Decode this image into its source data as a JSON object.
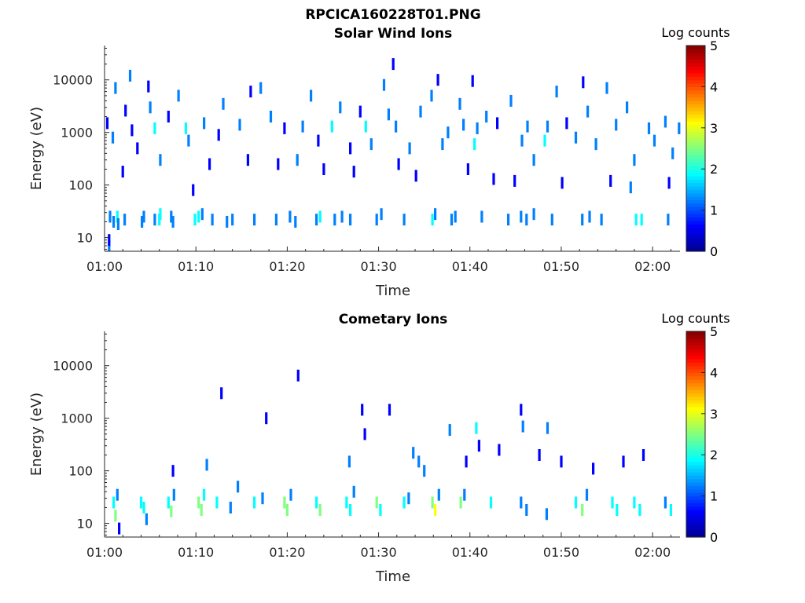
{
  "figure_title": "RPCICA160228T01.PNG",
  "colormap": [
    "#00008f",
    "#0000ff",
    "#0080ff",
    "#00ffff",
    "#80ff80",
    "#ffff00",
    "#ff8000",
    "#ff0000",
    "#800000"
  ],
  "chart_data": [
    {
      "type": "heatmap",
      "title": "Solar Wind Ions",
      "xlabel": "Time",
      "ylabel": "Energy (eV)",
      "x_ticks": [
        "01:00",
        "01:10",
        "01:20",
        "01:30",
        "01:40",
        "01:50",
        "02:00"
      ],
      "x_range_minutes": [
        0,
        63
      ],
      "y_ticks": [
        "10",
        "100",
        "1000",
        "10000"
      ],
      "y_scale": "log",
      "ylim": [
        5.5,
        45000
      ],
      "colorbar": {
        "label": "Log counts",
        "range": [
          0,
          5
        ],
        "ticks": [
          "0",
          "1",
          "2",
          "3",
          "4",
          "5"
        ]
      },
      "points": [
        [
          0.5,
          7,
          1.0
        ],
        [
          0.5,
          9,
          0.9
        ],
        [
          0.6,
          25,
          1.1
        ],
        [
          1.0,
          20,
          1.2
        ],
        [
          1.4,
          25,
          1.6
        ],
        [
          1.5,
          18,
          1.1
        ],
        [
          2.2,
          22,
          1.0
        ],
        [
          4.1,
          20,
          1.0
        ],
        [
          4.3,
          25,
          1.0
        ],
        [
          5.5,
          22,
          1.1
        ],
        [
          6.0,
          22,
          1.9
        ],
        [
          6.1,
          28,
          1.6
        ],
        [
          7.3,
          25,
          1.0
        ],
        [
          7.5,
          20,
          1.1
        ],
        [
          9.9,
          22,
          1.8
        ],
        [
          10.3,
          25,
          1.6
        ],
        [
          10.7,
          28,
          1.2
        ],
        [
          11.8,
          22,
          1.0
        ],
        [
          13.4,
          20,
          1.0
        ],
        [
          14.0,
          22,
          1.1
        ],
        [
          16.4,
          22,
          1.0
        ],
        [
          18.8,
          22,
          1.0
        ],
        [
          20.3,
          25,
          1.1
        ],
        [
          20.9,
          20,
          1.0
        ],
        [
          23.2,
          22,
          1.1
        ],
        [
          23.6,
          25,
          1.7
        ],
        [
          25.2,
          22,
          1.0
        ],
        [
          26.0,
          25,
          1.1
        ],
        [
          26.9,
          22,
          1.0
        ],
        [
          29.8,
          22,
          1.2
        ],
        [
          30.3,
          28,
          1.0
        ],
        [
          32.8,
          22,
          1.1
        ],
        [
          35.9,
          22,
          1.6
        ],
        [
          36.2,
          28,
          1.3
        ],
        [
          38.0,
          22,
          1.2
        ],
        [
          38.4,
          25,
          1.0
        ],
        [
          41.3,
          25,
          1.0
        ],
        [
          44.2,
          22,
          1.0
        ],
        [
          45.6,
          25,
          1.1
        ],
        [
          46.2,
          22,
          1.0
        ],
        [
          47.0,
          28,
          1.0
        ],
        [
          49.0,
          22,
          1.1
        ],
        [
          52.3,
          22,
          1.3
        ],
        [
          53.1,
          25,
          1.0
        ],
        [
          54.4,
          22,
          1.1
        ],
        [
          58.2,
          22,
          1.7
        ],
        [
          58.8,
          22,
          1.8
        ],
        [
          61.7,
          22,
          1.1
        ],
        [
          0.3,
          1500,
          0.9
        ],
        [
          0.9,
          800,
          1.0
        ],
        [
          1.2,
          7000,
          1.0
        ],
        [
          2.3,
          2600,
          0.8
        ],
        [
          2.8,
          12000,
          1.0
        ],
        [
          3.0,
          1100,
          0.8
        ],
        [
          5.0,
          3000,
          1.0
        ],
        [
          5.5,
          1200,
          1.6
        ],
        [
          6.1,
          300,
          1.0
        ],
        [
          7.0,
          2000,
          0.9
        ],
        [
          8.1,
          5000,
          1.0
        ],
        [
          8.9,
          1200,
          1.6
        ],
        [
          9.2,
          700,
          1.0
        ],
        [
          10.9,
          1500,
          1.0
        ],
        [
          12.5,
          900,
          0.9
        ],
        [
          13.0,
          3500,
          1.0
        ],
        [
          14.8,
          1400,
          1.1
        ],
        [
          15.7,
          300,
          0.9
        ],
        [
          17.1,
          7000,
          1.0
        ],
        [
          18.2,
          2000,
          1.0
        ],
        [
          19.7,
          1200,
          0.9
        ],
        [
          21.1,
          300,
          1.0
        ],
        [
          21.7,
          1300,
          1.0
        ],
        [
          22.6,
          5000,
          1.0
        ],
        [
          23.4,
          700,
          0.9
        ],
        [
          24.9,
          1300,
          1.6
        ],
        [
          25.8,
          3000,
          1.0
        ],
        [
          26.9,
          500,
          0.9
        ],
        [
          28.0,
          2500,
          0.9
        ],
        [
          28.6,
          1300,
          1.6
        ],
        [
          29.2,
          600,
          1.0
        ],
        [
          30.6,
          8000,
          1.0
        ],
        [
          31.1,
          2200,
          1.0
        ],
        [
          31.9,
          1300,
          1.5
        ],
        [
          33.4,
          500,
          1.0
        ],
        [
          34.6,
          2500,
          1.0
        ],
        [
          35.8,
          5000,
          1.0
        ],
        [
          37.0,
          600,
          1.5
        ],
        [
          37.6,
          1000,
          1.0
        ],
        [
          38.9,
          3500,
          1.0
        ],
        [
          39.3,
          1400,
          1.0
        ],
        [
          40.5,
          600,
          1.7
        ],
        [
          40.8,
          1200,
          1.0
        ],
        [
          41.8,
          2000,
          1.0
        ],
        [
          43.0,
          1500,
          0.9
        ],
        [
          44.5,
          4000,
          1.0
        ],
        [
          45.7,
          700,
          1.4
        ],
        [
          46.3,
          1300,
          1.0
        ],
        [
          47.0,
          300,
          1.0
        ],
        [
          48.2,
          700,
          1.6
        ],
        [
          48.5,
          1300,
          1.0
        ],
        [
          49.5,
          6000,
          1.0
        ],
        [
          50.6,
          1500,
          0.9
        ],
        [
          51.6,
          800,
          1.0
        ],
        [
          52.9,
          2500,
          1.0
        ],
        [
          53.8,
          600,
          1.0
        ],
        [
          55.0,
          7000,
          1.0
        ],
        [
          56.0,
          1400,
          1.1
        ],
        [
          57.2,
          3000,
          1.0
        ],
        [
          58.0,
          300,
          1.0
        ],
        [
          59.6,
          1200,
          1.0
        ],
        [
          60.2,
          700,
          1.0
        ],
        [
          61.4,
          1600,
          1.0
        ],
        [
          62.2,
          400,
          1.1
        ],
        [
          62.9,
          1200,
          1.0
        ],
        [
          3.6,
          500,
          0.9
        ],
        [
          11.5,
          250,
          0.8
        ],
        [
          19.0,
          250,
          0.9
        ],
        [
          24.0,
          200,
          0.8
        ],
        [
          27.3,
          180,
          0.9
        ],
        [
          32.2,
          250,
          0.9
        ],
        [
          34.1,
          150,
          0.8
        ],
        [
          39.8,
          200,
          0.9
        ],
        [
          42.6,
          130,
          0.8
        ],
        [
          44.9,
          120,
          0.9
        ],
        [
          50.1,
          110,
          0.9
        ],
        [
          55.4,
          120,
          0.9
        ],
        [
          57.6,
          90,
          1.0
        ],
        [
          61.8,
          110,
          0.9
        ],
        [
          2.0,
          180,
          0.9
        ],
        [
          9.7,
          80,
          0.9
        ],
        [
          4.8,
          7500,
          0.8
        ],
        [
          36.5,
          10000,
          0.9
        ],
        [
          52.4,
          9000,
          0.9
        ],
        [
          40.3,
          9500,
          0.8
        ],
        [
          16.0,
          6000,
          0.8
        ],
        [
          31.6,
          20000,
          0.9
        ]
      ]
    },
    {
      "type": "heatmap",
      "title": "Cometary Ions",
      "xlabel": "Time",
      "ylabel": "Energy (eV)",
      "x_ticks": [
        "01:00",
        "01:10",
        "01:20",
        "01:30",
        "01:40",
        "01:50",
        "02:00"
      ],
      "x_range_minutes": [
        0,
        63
      ],
      "y_ticks": [
        "10",
        "100",
        "1000",
        "10000"
      ],
      "y_scale": "log",
      "ylim": [
        5.5,
        45000
      ],
      "colorbar": {
        "label": "Log counts",
        "range": [
          0,
          5
        ],
        "ticks": [
          "0",
          "1",
          "2",
          "3",
          "4",
          "5"
        ]
      },
      "points": [
        [
          1.0,
          25,
          1.9
        ],
        [
          1.2,
          14,
          2.2
        ],
        [
          1.4,
          35,
          1.4
        ],
        [
          1.6,
          8,
          0.8
        ],
        [
          4.0,
          25,
          1.8
        ],
        [
          4.3,
          20,
          2.0
        ],
        [
          4.6,
          12,
          1.3
        ],
        [
          7.0,
          25,
          2.1
        ],
        [
          7.3,
          17,
          2.5
        ],
        [
          7.6,
          35,
          1.2
        ],
        [
          10.3,
          25,
          2.2
        ],
        [
          10.6,
          18,
          2.6
        ],
        [
          10.9,
          35,
          1.7
        ],
        [
          11.2,
          130,
          1.5
        ],
        [
          12.3,
          25,
          1.6
        ],
        [
          13.8,
          20,
          1.5
        ],
        [
          16.4,
          25,
          1.8
        ],
        [
          17.3,
          30,
          1.2
        ],
        [
          19.7,
          25,
          2.2
        ],
        [
          20.0,
          18,
          2.4
        ],
        [
          20.4,
          35,
          1.3
        ],
        [
          23.2,
          25,
          1.9
        ],
        [
          23.6,
          18,
          2.3
        ],
        [
          26.5,
          25,
          1.7
        ],
        [
          26.9,
          18,
          2.0
        ],
        [
          27.3,
          40,
          1.1
        ],
        [
          29.8,
          25,
          2.3
        ],
        [
          30.2,
          18,
          1.8
        ],
        [
          32.8,
          25,
          1.9
        ],
        [
          33.3,
          30,
          1.4
        ],
        [
          35.9,
          25,
          2.5
        ],
        [
          36.2,
          18,
          3.1
        ],
        [
          36.6,
          35,
          1.5
        ],
        [
          39.0,
          25,
          2.2
        ],
        [
          39.4,
          35,
          1.4
        ],
        [
          42.3,
          25,
          1.6
        ],
        [
          45.6,
          25,
          1.3
        ],
        [
          46.2,
          18,
          1.0
        ],
        [
          48.4,
          15,
          1.2
        ],
        [
          51.6,
          25,
          1.9
        ],
        [
          52.3,
          18,
          2.3
        ],
        [
          52.8,
          35,
          1.3
        ],
        [
          55.6,
          25,
          1.8
        ],
        [
          56.1,
          18,
          2.0
        ],
        [
          58.0,
          25,
          2.0
        ],
        [
          58.6,
          18,
          1.8
        ],
        [
          61.4,
          25,
          1.5
        ],
        [
          62.0,
          18,
          1.9
        ],
        [
          12.8,
          3000,
          0.9
        ],
        [
          17.7,
          1000,
          0.8
        ],
        [
          21.2,
          6500,
          0.8
        ],
        [
          28.2,
          1450,
          0.8
        ],
        [
          28.5,
          500,
          0.8
        ],
        [
          31.2,
          1450,
          0.9
        ],
        [
          35.0,
          100,
          1.0
        ],
        [
          37.8,
          600,
          1.0
        ],
        [
          40.7,
          650,
          1.6
        ],
        [
          45.6,
          1450,
          0.9
        ],
        [
          45.8,
          700,
          1.0
        ],
        [
          48.5,
          650,
          1.5
        ],
        [
          43.2,
          250,
          0.8
        ],
        [
          47.6,
          200,
          0.9
        ],
        [
          50.0,
          150,
          0.8
        ],
        [
          53.5,
          110,
          0.9
        ],
        [
          56.8,
          150,
          0.9
        ],
        [
          59.0,
          200,
          0.9
        ],
        [
          33.8,
          220,
          1.0
        ],
        [
          34.4,
          150,
          1.1
        ],
        [
          26.8,
          150,
          1.0
        ],
        [
          39.6,
          150,
          0.9
        ],
        [
          41.0,
          300,
          0.9
        ],
        [
          7.5,
          100,
          0.9
        ],
        [
          14.6,
          50,
          1.0
        ]
      ]
    }
  ]
}
